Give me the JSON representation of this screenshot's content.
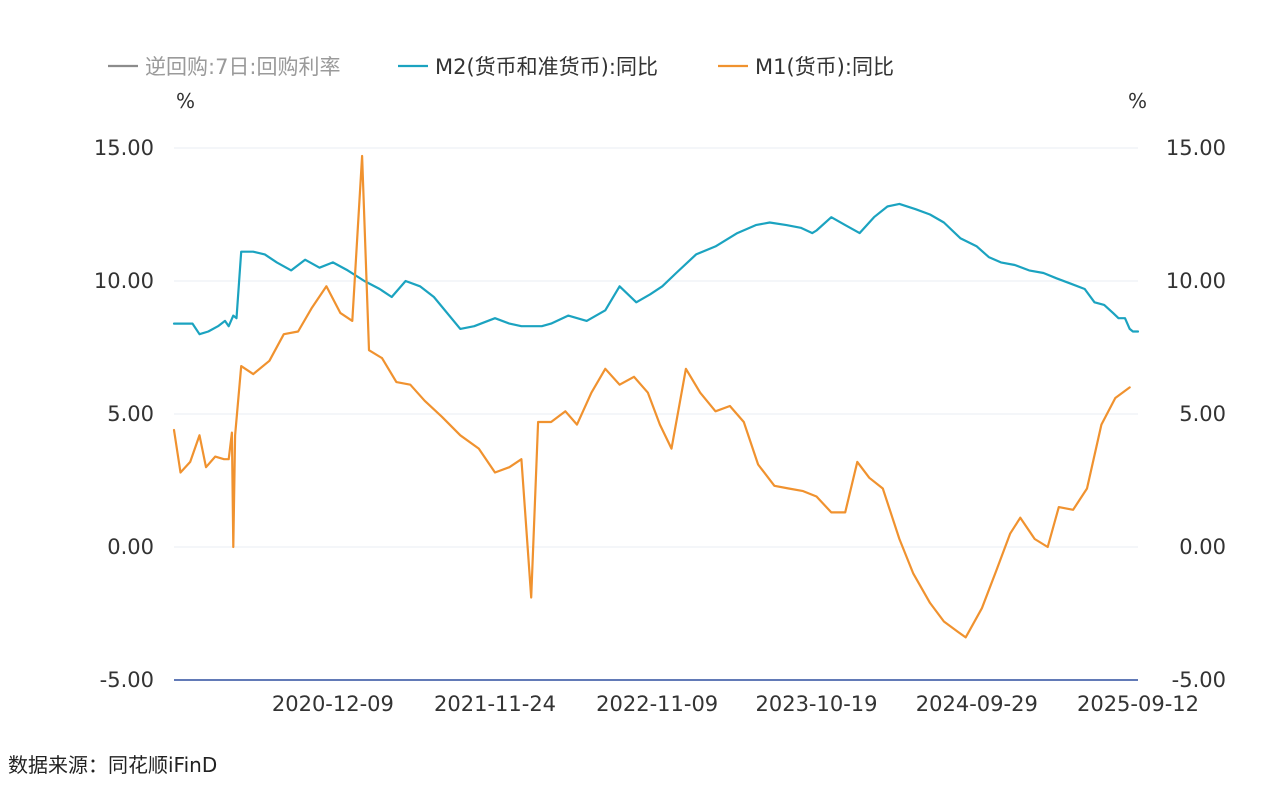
{
  "chart_data": {
    "type": "line",
    "legend": [
      {
        "name": "逆回购:7日:回购利率",
        "color": "#8c8c8c",
        "visible": false
      },
      {
        "name": "M2(货币和准货币):同比",
        "color": "#1ba3c0",
        "visible": true
      },
      {
        "name": "M1(货币):同比",
        "color": "#f0922f",
        "visible": true
      }
    ],
    "left_unit": "%",
    "right_unit": "%",
    "ylim": [
      -5,
      15
    ],
    "y_ticks": [
      "15.00",
      "10.00",
      "5.00",
      "0.00",
      "-5.00"
    ],
    "y_tick_values": [
      15,
      10,
      5,
      0,
      -5
    ],
    "x_range": [
      "2020-01-01",
      "2025-09-12"
    ],
    "x_ticks": [
      {
        "date": "2020-12-09",
        "label": "2020-12-09"
      },
      {
        "date": "2021-11-24",
        "label": "2021-11-24"
      },
      {
        "date": "2022-11-09",
        "label": "2022-11-09"
      },
      {
        "date": "2023-10-19",
        "label": "2023-10-19"
      },
      {
        "date": "2024-09-29",
        "label": "2024-09-29"
      },
      {
        "date": "2025-09-12",
        "label": "2025-09-12"
      }
    ],
    "grid": true,
    "legend_position": "top-left",
    "series": [
      {
        "name": "M2(货币和准货币):同比",
        "color": "#1ba3c0",
        "points": [
          [
            "2020-01-01",
            8.4
          ],
          [
            "2020-01-20",
            8.4
          ],
          [
            "2020-02-10",
            8.4
          ],
          [
            "2020-02-25",
            8.0
          ],
          [
            "2020-03-15",
            8.1
          ],
          [
            "2020-04-05",
            8.3
          ],
          [
            "2020-04-20",
            8.5
          ],
          [
            "2020-04-28",
            8.3
          ],
          [
            "2020-05-08",
            8.7
          ],
          [
            "2020-05-15",
            8.6
          ],
          [
            "2020-05-25",
            11.1
          ],
          [
            "2020-06-20",
            11.1
          ],
          [
            "2020-07-15",
            11.0
          ],
          [
            "2020-08-10",
            10.7
          ],
          [
            "2020-09-10",
            10.4
          ],
          [
            "2020-10-10",
            10.8
          ],
          [
            "2020-11-10",
            10.5
          ],
          [
            "2020-12-09",
            10.7
          ],
          [
            "2021-01-10",
            10.4
          ],
          [
            "2021-02-15",
            10.0
          ],
          [
            "2021-03-20",
            9.7
          ],
          [
            "2021-04-15",
            9.4
          ],
          [
            "2021-05-15",
            10.0
          ],
          [
            "2021-06-15",
            9.8
          ],
          [
            "2021-07-15",
            9.4
          ],
          [
            "2021-09-10",
            8.2
          ],
          [
            "2021-10-10",
            8.3
          ],
          [
            "2021-11-24",
            8.6
          ],
          [
            "2021-12-25",
            8.4
          ],
          [
            "2022-01-20",
            8.3
          ],
          [
            "2022-03-05",
            8.3
          ],
          [
            "2022-03-25",
            8.4
          ],
          [
            "2022-05-01",
            8.7
          ],
          [
            "2022-06-10",
            8.5
          ],
          [
            "2022-07-20",
            8.9
          ],
          [
            "2022-08-20",
            9.8
          ],
          [
            "2022-09-25",
            9.2
          ],
          [
            "2022-10-25",
            9.5
          ],
          [
            "2022-11-20",
            9.8
          ],
          [
            "2022-12-20",
            10.3
          ],
          [
            "2023-02-01",
            11.0
          ],
          [
            "2023-03-15",
            11.3
          ],
          [
            "2023-05-01",
            11.8
          ],
          [
            "2023-06-10",
            12.1
          ],
          [
            "2023-07-10",
            12.2
          ],
          [
            "2023-08-15",
            12.1
          ],
          [
            "2023-09-15",
            12.0
          ],
          [
            "2023-10-10",
            11.8
          ],
          [
            "2023-10-19",
            11.9
          ],
          [
            "2023-11-20",
            12.4
          ],
          [
            "2023-12-20",
            12.1
          ],
          [
            "2024-01-20",
            11.8
          ],
          [
            "2024-02-20",
            12.4
          ],
          [
            "2024-03-20",
            12.8
          ],
          [
            "2024-04-15",
            12.9
          ],
          [
            "2024-05-20",
            12.7
          ],
          [
            "2024-06-20",
            12.5
          ],
          [
            "2024-07-20",
            12.2
          ],
          [
            "2024-08-25",
            11.6
          ],
          [
            "2024-09-29",
            11.3
          ],
          [
            "2024-10-25",
            10.9
          ],
          [
            "2024-11-20",
            10.7
          ],
          [
            "2024-12-20",
            10.6
          ],
          [
            "2025-01-20",
            10.4
          ],
          [
            "2025-02-20",
            10.3
          ],
          [
            "2025-03-20",
            10.1
          ],
          [
            "2025-04-20",
            9.9
          ],
          [
            "2025-05-20",
            9.7
          ],
          [
            "2025-06-10",
            9.2
          ],
          [
            "2025-07-01",
            9.1
          ],
          [
            "2025-07-20",
            8.8
          ],
          [
            "2025-08-01",
            8.6
          ],
          [
            "2025-08-15",
            8.6
          ],
          [
            "2025-08-25",
            8.2
          ],
          [
            "2025-09-01",
            8.1
          ],
          [
            "2025-09-12",
            8.1
          ]
        ]
      },
      {
        "name": "M1(货币):同比",
        "color": "#f0922f",
        "points": [
          [
            "2020-01-01",
            4.4
          ],
          [
            "2020-01-15",
            2.8
          ],
          [
            "2020-02-05",
            3.2
          ],
          [
            "2020-02-25",
            4.2
          ],
          [
            "2020-03-10",
            3.0
          ],
          [
            "2020-03-30",
            3.4
          ],
          [
            "2020-04-18",
            3.3
          ],
          [
            "2020-04-28",
            3.3
          ],
          [
            "2020-05-05",
            4.3
          ],
          [
            "2020-05-08",
            0.0
          ],
          [
            "2020-05-12",
            4.2
          ],
          [
            "2020-05-25",
            6.8
          ],
          [
            "2020-06-20",
            6.5
          ],
          [
            "2020-07-25",
            7.0
          ],
          [
            "2020-08-25",
            8.0
          ],
          [
            "2020-09-25",
            8.1
          ],
          [
            "2020-10-25",
            9.0
          ],
          [
            "2020-11-25",
            9.8
          ],
          [
            "2020-12-25",
            8.8
          ],
          [
            "2021-01-20",
            8.5
          ],
          [
            "2021-02-10",
            14.7
          ],
          [
            "2021-02-25",
            7.4
          ],
          [
            "2021-03-25",
            7.1
          ],
          [
            "2021-04-25",
            6.2
          ],
          [
            "2021-05-25",
            6.1
          ],
          [
            "2021-06-25",
            5.5
          ],
          [
            "2021-08-01",
            4.9
          ],
          [
            "2021-09-10",
            4.2
          ],
          [
            "2021-10-20",
            3.7
          ],
          [
            "2021-11-24",
            2.8
          ],
          [
            "2021-12-25",
            3.0
          ],
          [
            "2022-01-20",
            3.3
          ],
          [
            "2022-02-10",
            -1.9
          ],
          [
            "2022-02-25",
            4.7
          ],
          [
            "2022-03-25",
            4.7
          ],
          [
            "2022-04-25",
            5.1
          ],
          [
            "2022-05-20",
            4.6
          ],
          [
            "2022-06-20",
            5.8
          ],
          [
            "2022-07-20",
            6.7
          ],
          [
            "2022-08-20",
            6.1
          ],
          [
            "2022-09-20",
            6.4
          ],
          [
            "2022-10-20",
            5.8
          ],
          [
            "2022-11-15",
            4.6
          ],
          [
            "2022-12-10",
            3.7
          ],
          [
            "2023-01-10",
            6.7
          ],
          [
            "2023-02-10",
            5.8
          ],
          [
            "2023-03-15",
            5.1
          ],
          [
            "2023-04-15",
            5.3
          ],
          [
            "2023-05-15",
            4.7
          ],
          [
            "2023-06-15",
            3.1
          ],
          [
            "2023-07-20",
            2.3
          ],
          [
            "2023-08-20",
            2.2
          ],
          [
            "2023-09-20",
            2.1
          ],
          [
            "2023-10-19",
            1.9
          ],
          [
            "2023-11-20",
            1.3
          ],
          [
            "2023-12-20",
            1.3
          ],
          [
            "2024-01-15",
            3.2
          ],
          [
            "2024-02-10",
            2.6
          ],
          [
            "2024-03-10",
            2.2
          ],
          [
            "2024-04-15",
            0.3
          ],
          [
            "2024-05-15",
            -1.0
          ],
          [
            "2024-06-20",
            -2.1
          ],
          [
            "2024-07-20",
            -2.8
          ],
          [
            "2024-08-20",
            -3.2
          ],
          [
            "2024-09-05",
            -3.4
          ],
          [
            "2024-10-10",
            -2.3
          ],
          [
            "2024-11-10",
            -0.9
          ],
          [
            "2024-12-10",
            0.5
          ],
          [
            "2025-01-01",
            1.1
          ],
          [
            "2025-02-01",
            0.3
          ],
          [
            "2025-03-01",
            0.0
          ],
          [
            "2025-03-25",
            1.5
          ],
          [
            "2025-04-25",
            1.4
          ],
          [
            "2025-05-25",
            2.2
          ],
          [
            "2025-06-25",
            4.6
          ],
          [
            "2025-07-25",
            5.6
          ],
          [
            "2025-08-25",
            6.0
          ]
        ]
      }
    ]
  },
  "footer": {
    "source": "数据来源：同花顺iFinD"
  }
}
